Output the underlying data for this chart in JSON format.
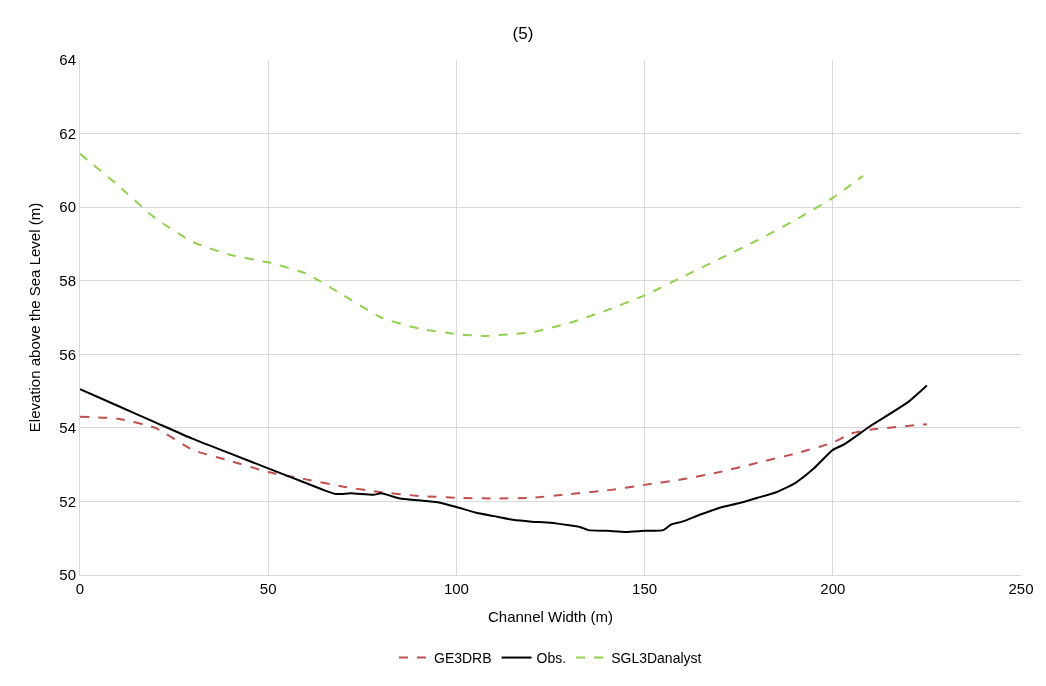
{
  "chart_data": {
    "type": "line",
    "title": "(5)",
    "xlabel": "Channel Width (m)",
    "ylabel": "Elevation above the Sea Level (m)",
    "xlim": [
      0,
      250
    ],
    "xticks": [
      0,
      50,
      100,
      150,
      200,
      250
    ],
    "ylim": [
      50,
      64
    ],
    "yticks": [
      50,
      52,
      54,
      56,
      58,
      60,
      62,
      64
    ],
    "grid": true,
    "legend": "bottom",
    "marker": "none",
    "series": [
      {
        "name": "GE3DRB",
        "color": "#c0504d",
        "line_style": "dashed",
        "x": [
          0,
          10,
          20,
          30,
          40,
          50,
          60,
          70,
          80,
          90,
          100,
          110,
          120,
          130,
          140,
          150,
          160,
          170,
          180,
          190,
          200,
          205,
          210,
          225
        ],
        "values": [
          54.3,
          54.25,
          54.0,
          53.4,
          53.1,
          52.8,
          52.6,
          52.4,
          52.25,
          52.15,
          52.1,
          52.08,
          52.1,
          52.2,
          52.3,
          52.45,
          52.6,
          52.8,
          53.05,
          53.3,
          53.6,
          53.85,
          53.95,
          54.1
        ]
      },
      {
        "name": "Obs.",
        "color": "#000000",
        "line_style": "solid",
        "x": [
          0,
          10,
          20,
          30,
          40,
          50,
          60,
          65,
          68,
          72,
          78,
          80,
          85,
          90,
          95,
          100,
          105,
          110,
          115,
          120,
          125,
          130,
          133,
          135,
          140,
          145,
          150,
          155,
          157,
          160,
          165,
          170,
          175,
          180,
          185,
          190,
          195,
          200,
          203,
          210,
          220,
          225
        ],
        "values": [
          55.05,
          54.6,
          54.15,
          53.7,
          53.3,
          52.9,
          52.5,
          52.3,
          52.2,
          52.22,
          52.18,
          52.22,
          52.08,
          52.03,
          51.98,
          51.85,
          51.7,
          51.6,
          51.5,
          51.45,
          51.42,
          51.35,
          51.3,
          51.22,
          51.2,
          51.17,
          51.2,
          51.22,
          51.37,
          51.45,
          51.65,
          51.83,
          51.95,
          52.1,
          52.25,
          52.5,
          52.9,
          53.4,
          53.55,
          54.05,
          54.7,
          55.15
        ]
      },
      {
        "name": "SGL3Danalyst",
        "color": "#92d050",
        "line_style": "dashed",
        "x": [
          0,
          10,
          20,
          30,
          40,
          50,
          60,
          70,
          80,
          90,
          100,
          107,
          120,
          130,
          140,
          150,
          160,
          170,
          180,
          190,
          200,
          208
        ],
        "values": [
          61.45,
          60.6,
          59.7,
          59.05,
          58.7,
          58.5,
          58.2,
          57.6,
          57.0,
          56.7,
          56.55,
          56.5,
          56.6,
          56.85,
          57.2,
          57.6,
          58.1,
          58.6,
          59.1,
          59.65,
          60.25,
          60.85
        ]
      }
    ]
  }
}
